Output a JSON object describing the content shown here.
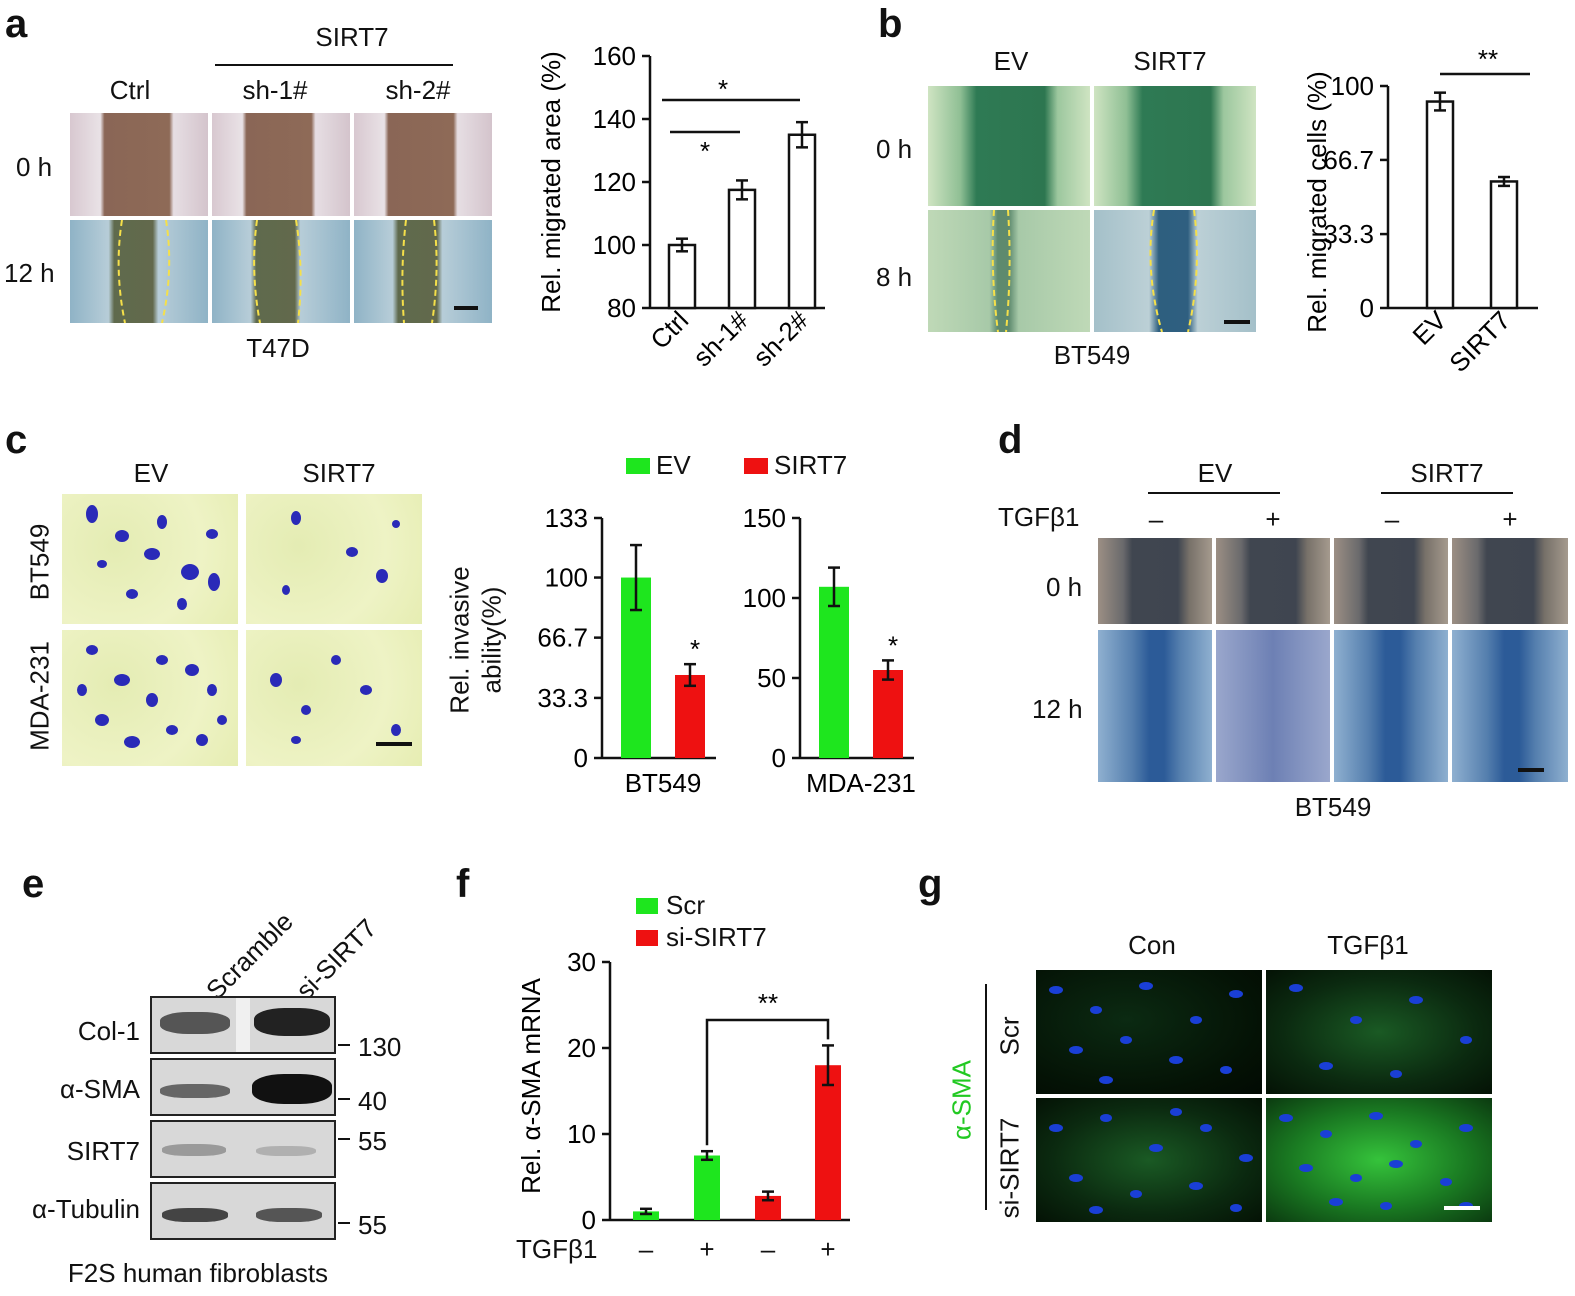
{
  "panels": {
    "a": {
      "letter": "a",
      "group_label": "SIRT7",
      "col_labels": [
        "Ctrl",
        "sh-1#",
        "sh-2#"
      ],
      "row_labels": [
        "0 h",
        "12 h"
      ],
      "cell_line": "T47D"
    },
    "b": {
      "letter": "b",
      "col_labels": [
        "EV",
        "SIRT7"
      ],
      "row_labels": [
        "0 h",
        "8 h"
      ],
      "cell_line": "BT549"
    },
    "c": {
      "letter": "c",
      "col_labels": [
        "EV",
        "SIRT7"
      ],
      "row_labels": [
        "BT549",
        "MDA-231"
      ],
      "legend": [
        "EV",
        "SIRT7"
      ],
      "ylabel_line1": "Rel. invasive",
      "ylabel_line2": "ability(%)"
    },
    "d": {
      "letter": "d",
      "group_labels": [
        "EV",
        "SIRT7"
      ],
      "treatment_label": "TGFβ1",
      "treatment_signs": [
        "–",
        "+",
        "–",
        "+"
      ],
      "row_labels": [
        "0 h",
        "12 h"
      ],
      "cell_line": "BT549"
    },
    "e": {
      "letter": "e",
      "lane_labels": [
        "Scramble",
        "si-SIRT7"
      ],
      "proteins": [
        "Col-1",
        "α-SMA",
        "SIRT7",
        "α-Tubulin"
      ],
      "markers": [
        "130",
        "40",
        "55",
        "55"
      ],
      "caption": "F2S human fibroblasts"
    },
    "f": {
      "letter": "f",
      "legend": [
        "Scr",
        "si-SIRT7"
      ],
      "treatment_label": "TGFβ1",
      "treatment_signs": [
        "–",
        "+",
        "–",
        "+"
      ]
    },
    "g": {
      "letter": "g",
      "col_labels": [
        "Con",
        "TGFβ1"
      ],
      "row_labels": [
        "Scr",
        "si-SIRT7"
      ],
      "stain_label": "α-SMA"
    }
  },
  "colors": {
    "green": "#1ee61e",
    "red": "#ee1111",
    "stain_green": "#22c922"
  },
  "chart_data": [
    {
      "id": "a-chart",
      "type": "bar",
      "categories": [
        "Ctrl",
        "sh-1#",
        "sh-2#"
      ],
      "values": [
        100,
        117.5,
        135
      ],
      "errors": [
        2,
        3,
        4
      ],
      "ylabel": "Rel. migrated area (%)",
      "ylim": [
        80,
        160
      ],
      "yticks": [
        "80",
        "100",
        "120",
        "140",
        "160"
      ],
      "significance": [
        {
          "from": 0,
          "to": 1,
          "label": "*"
        },
        {
          "from": 0,
          "to": 2,
          "label": "*"
        }
      ],
      "fill": "#ffffff"
    },
    {
      "id": "b-chart",
      "type": "bar",
      "categories": [
        "EV",
        "SIRT7"
      ],
      "values": [
        93,
        57
      ],
      "errors": [
        4,
        2
      ],
      "ylabel": "Rel. migrated cells (%)",
      "ylim": [
        0,
        100
      ],
      "yticks": [
        "0",
        "33.3",
        "66.7",
        "100"
      ],
      "significance": [
        {
          "from": 0,
          "to": 1,
          "label": "**"
        }
      ],
      "fill": "#ffffff"
    },
    {
      "id": "c-chart-1",
      "type": "bar",
      "xlabel": "BT549",
      "series": [
        {
          "name": "EV",
          "values": [
            100
          ],
          "errors": [
            18
          ]
        },
        {
          "name": "SIRT7",
          "values": [
            46
          ],
          "errors": [
            6
          ]
        }
      ],
      "ylim": [
        0,
        133
      ],
      "yticks": [
        "0",
        "33.3",
        "66.7",
        "100",
        "133"
      ],
      "significance_labels": [
        "*"
      ]
    },
    {
      "id": "c-chart-2",
      "type": "bar",
      "xlabel": "MDA-231",
      "series": [
        {
          "name": "EV",
          "values": [
            107
          ],
          "errors": [
            12
          ]
        },
        {
          "name": "SIRT7",
          "values": [
            55
          ],
          "errors": [
            6
          ]
        }
      ],
      "ylim": [
        0,
        150
      ],
      "yticks": [
        "0",
        "50",
        "100",
        "150"
      ],
      "significance_labels": [
        "*"
      ]
    },
    {
      "id": "f-chart",
      "type": "bar",
      "categories": [
        "Scr –",
        "Scr +",
        "si-SIRT7 –",
        "si-SIRT7 +"
      ],
      "values": [
        1,
        7.5,
        2.8,
        18
      ],
      "errors": [
        0.3,
        0.5,
        0.5,
        2.3
      ],
      "series_of_bar": [
        "Scr",
        "Scr",
        "si-SIRT7",
        "si-SIRT7"
      ],
      "ylabel": "Rel. α-SMA mRNA",
      "ylim": [
        0,
        30
      ],
      "yticks": [
        "0",
        "10",
        "20",
        "30"
      ],
      "significance": [
        {
          "from": 1,
          "to": 3,
          "label": "**"
        }
      ]
    }
  ]
}
